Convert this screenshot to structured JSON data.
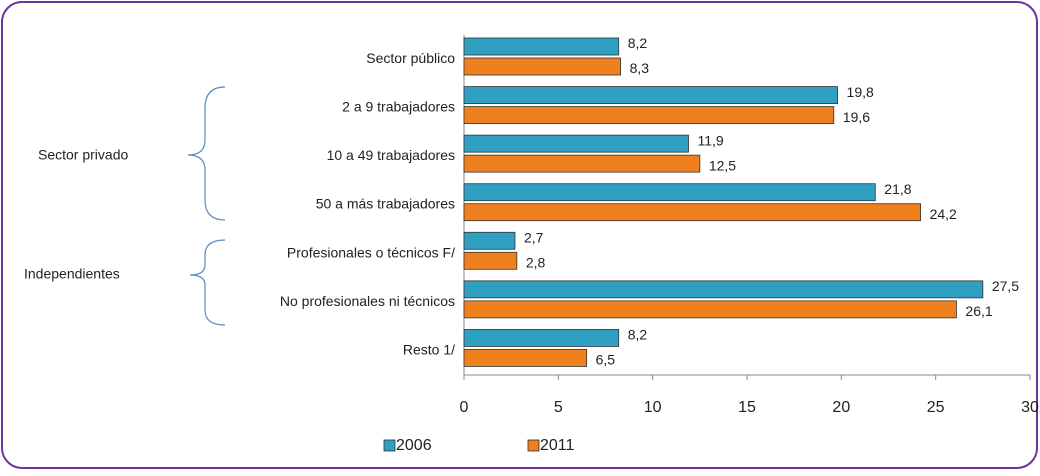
{
  "chart_data": {
    "type": "bar",
    "orientation": "horizontal",
    "categories": [
      "Sector público",
      "2 a 9 trabajadores",
      "10 a 49 trabajadores",
      "50 a más trabajadores",
      "Profesionales o técnicos F/",
      "No profesionales ni técnicos",
      "Resto 1/"
    ],
    "annotations": [
      "Sector privado",
      "Independientes"
    ],
    "series": [
      {
        "name": "2006",
        "color": "#2f9fc2",
        "values": [
          8.2,
          19.8,
          11.9,
          21.8,
          2.7,
          27.5,
          8.2
        ],
        "value_labels": [
          "8,2",
          "19,8",
          "11,9",
          "21,8",
          "2,7",
          "27,5",
          "8,2"
        ]
      },
      {
        "name": "2011",
        "color": "#f07f1e",
        "values": [
          8.3,
          19.6,
          12.5,
          24.2,
          2.8,
          26.1,
          6.5
        ],
        "value_labels": [
          "8,3",
          "19,6",
          "12,5",
          "24,2",
          "2,8",
          "26,1",
          "6,5"
        ]
      }
    ],
    "xlim": [
      0,
      30
    ],
    "xticks": [
      0,
      5,
      10,
      15,
      20,
      25,
      30
    ],
    "legend": "bottom"
  }
}
